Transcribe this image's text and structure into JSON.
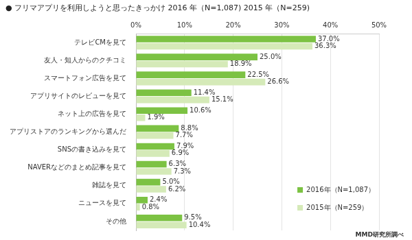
{
  "chart_data": {
    "type": "bar",
    "orientation": "horizontal",
    "title": "● フリマアプリを利用しようと思ったきっかけ 2016 年（N=1,087) 2015 年（N=259)",
    "categories": [
      "テレビCMを見て",
      "友人・知人からのクチコミ",
      "スマートフォン広告を見て",
      "アプリサイトのレビューを見て",
      "ネット上の広告を見て",
      "アプリストアのランキングから選んだ",
      "SNSの書き込みを見て",
      "NAVERなどのまとめ記事を見て",
      "雑誌を見て",
      "ニュースを見て",
      "その他"
    ],
    "series": [
      {
        "name": "2016年（N=1,087）",
        "color": "#7cc243",
        "values": [
          37.0,
          25.0,
          22.5,
          11.4,
          10.6,
          8.8,
          7.9,
          6.3,
          5.0,
          2.4,
          9.5
        ],
        "value_labels": [
          "37.0%",
          "25.0%",
          "22.5%",
          "11.4%",
          "10.6%",
          "8.8%",
          "7.9%",
          "6.3%",
          "5.0%",
          "2.4%",
          "9.5%"
        ]
      },
      {
        "name": "2015年（N=259）",
        "color": "#d5eab8",
        "values": [
          36.3,
          18.9,
          26.6,
          15.1,
          1.9,
          7.7,
          6.9,
          7.3,
          6.2,
          0.8,
          10.4
        ],
        "value_labels": [
          "36.3%",
          "18.9%",
          "26.6%",
          "15.1%",
          "1.9%",
          "7.7%",
          "6.9%",
          "7.3%",
          "6.2%",
          "0.8%",
          "10.4%"
        ]
      }
    ],
    "xlim": [
      0,
      50
    ],
    "xticks": [
      {
        "value": 0,
        "label": "0%"
      },
      {
        "value": 10,
        "label": "10%"
      },
      {
        "value": 20,
        "label": "20%"
      },
      {
        "value": 30,
        "label": "30%"
      },
      {
        "value": 40,
        "label": "40%"
      },
      {
        "value": 50,
        "label": "50%"
      }
    ],
    "grid": true,
    "legend": "lower right",
    "data_labels": true,
    "annotations": [
      "MMD研究所調べ"
    ]
  }
}
